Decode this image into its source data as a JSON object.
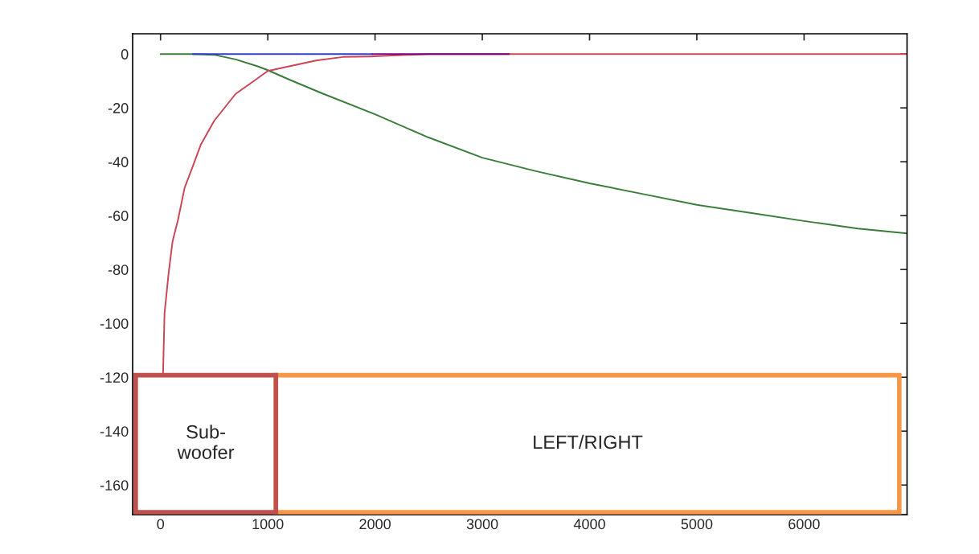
{
  "chart_data": {
    "type": "line",
    "series": [
      {
        "color": "#3a7d3a",
        "x": [
          0,
          300,
          500,
          700,
          900,
          1000,
          1200,
          1500,
          2000,
          2500,
          3000,
          3500,
          4000,
          4500,
          5000,
          5500,
          6000,
          6500,
          6960
        ],
        "values": [
          0,
          0,
          -0.3,
          -2,
          -4.5,
          -6,
          -9.5,
          -14.5,
          -22.4,
          -31,
          -38.5,
          -43.5,
          -48,
          -52,
          -56,
          -59,
          -62,
          -64.8,
          -66.6
        ]
      },
      {
        "color": "#cc4455",
        "x": [
          23,
          37,
          75,
          112,
          163,
          225,
          300,
          375,
          500,
          700,
          875,
          1000,
          1450,
          1700,
          1950,
          2500,
          6960
        ],
        "values": [
          -119.5,
          -96.4,
          -81.5,
          -69.6,
          -61.5,
          -49.6,
          -41.8,
          -33.7,
          -24.8,
          -14.8,
          -9.9,
          -6.3,
          -2.4,
          -1.1,
          -0.9,
          0,
          0
        ]
      },
      {
        "color": "#3040c0",
        "x": [
          300,
          1975
        ],
        "values": [
          0,
          0
        ]
      },
      {
        "color": "#800080",
        "x": [
          1975,
          3250
        ],
        "values": [
          0,
          0
        ]
      }
    ],
    "xlim": [
      -260,
      6960
    ],
    "ylim": [
      -171,
      7.5
    ],
    "xticks": [
      0,
      1000,
      2000,
      3000,
      4000,
      5000,
      6000
    ],
    "yticks": [
      0,
      -20,
      -40,
      -60,
      -80,
      -100,
      -120,
      -140,
      -160
    ],
    "grid": false,
    "annotations": [
      "Sub-\nwoofer",
      "LEFT/RIGHT"
    ]
  }
}
